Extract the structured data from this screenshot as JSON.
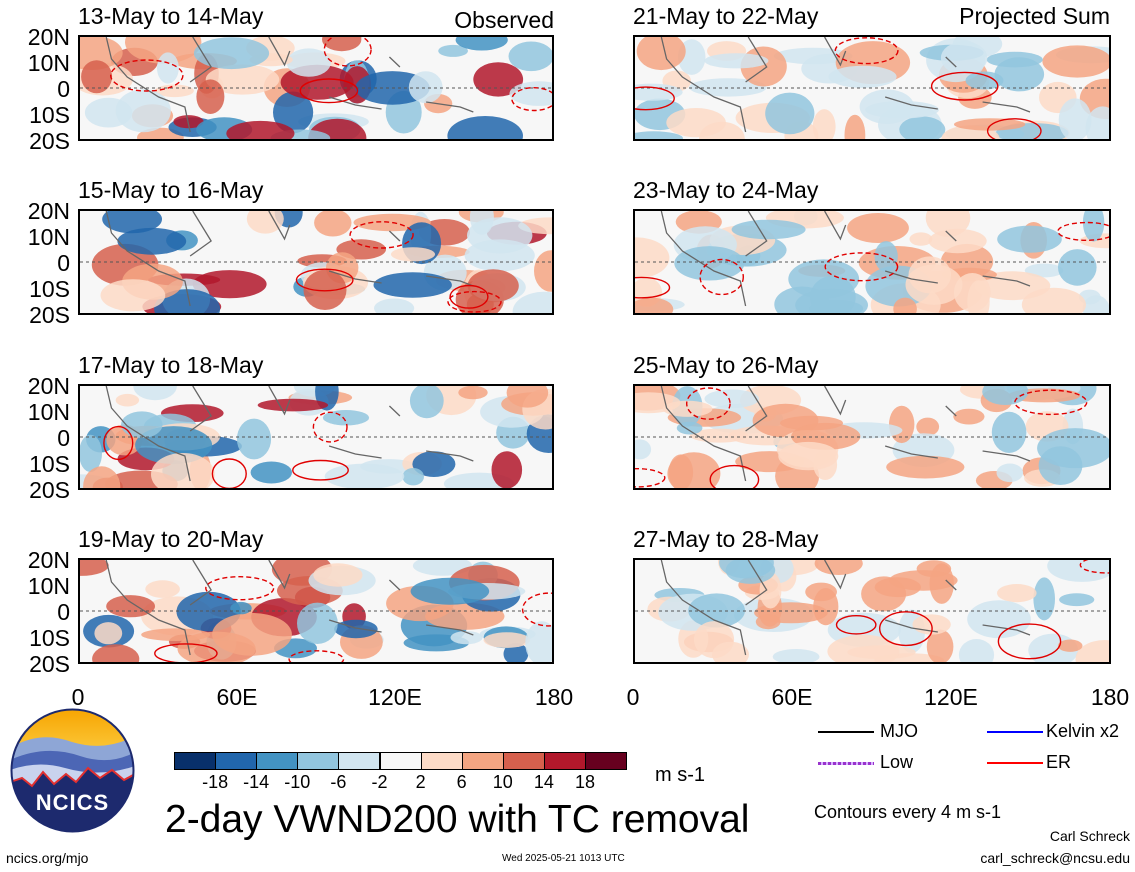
{
  "panels": [
    {
      "title": "13-May to 14-May",
      "label": "Observed"
    },
    {
      "title": "21-May to 22-May",
      "label": "Projected Sum"
    },
    {
      "title": "15-May to 16-May",
      "label": ""
    },
    {
      "title": "23-May to 24-May",
      "label": ""
    },
    {
      "title": "17-May to 18-May",
      "label": ""
    },
    {
      "title": "25-May to 26-May",
      "label": ""
    },
    {
      "title": "19-May to 20-May",
      "label": ""
    },
    {
      "title": "27-May to 28-May",
      "label": ""
    }
  ],
  "y_ticks": [
    "20N",
    "10N",
    "0",
    "10S",
    "20S"
  ],
  "x_ticks": [
    "0",
    "60E",
    "120E",
    "180"
  ],
  "colorbar": {
    "colors": [
      "#08306b",
      "#2166ac",
      "#4393c3",
      "#92c5de",
      "#d1e5f0",
      "#f7f7f7",
      "#fddbc7",
      "#f4a582",
      "#d6604d",
      "#b2182b",
      "#67001f"
    ],
    "ticks": [
      "-18",
      "-14",
      "-10",
      "-6",
      "-2",
      "2",
      "6",
      "10",
      "14",
      "18"
    ],
    "units": "m s-1"
  },
  "legend": {
    "mjo": "MJO",
    "kelvin": "Kelvin x2",
    "low": "Low",
    "er": "ER",
    "mjo_color": "#000000",
    "kelvin_color": "#0000ff",
    "low_color": "#9933cc",
    "er_color": "#ff0000"
  },
  "main_title": "2-day VWND200 with TC removal",
  "contours_note": "Contours every 4 m s-1",
  "logo_text": "NCICS",
  "footer": {
    "url": "ncics.org/mjo",
    "timestamp": "Wed 2025-05-21 1013 UTC",
    "author": "Carl Schreck",
    "email": "carl_schreck@ncsu.edu"
  }
}
